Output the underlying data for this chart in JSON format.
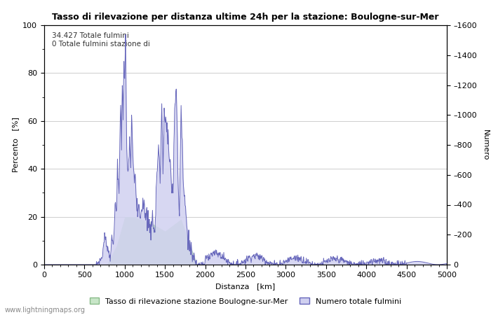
{
  "title": "Tasso di rilevazione per distanza ultime 24h per la stazione: Boulogne-sur-Mer",
  "xlabel": "Distanza   [km]",
  "ylabel_left": "Percento   [%]",
  "ylabel_right": "Numero",
  "annotation": "34.427 Totale fulmini\n0 Totale fulmini stazione di",
  "xlim": [
    0,
    5000
  ],
  "ylim_left": [
    0,
    100
  ],
  "ylim_right": [
    0,
    1600
  ],
  "x_ticks": [
    0,
    500,
    1000,
    1500,
    2000,
    2500,
    3000,
    3500,
    4000,
    4500,
    5000
  ],
  "y_ticks_left": [
    0,
    20,
    40,
    60,
    80,
    100
  ],
  "y_ticks_right": [
    0,
    200,
    400,
    600,
    800,
    1000,
    1200,
    1400,
    1600
  ],
  "watermark": "www.lightningmaps.org",
  "legend_green_label": "Tasso di rilevazione stazione Boulogne-sur-Mer",
  "legend_blue_label": "Numero totale fulmini",
  "green_fill_color": "#c8e6c8",
  "blue_fill_color": "#d0d0f0",
  "blue_line_color": "#6666bb",
  "green_line_color": "#88bb88",
  "background_color": "#ffffff",
  "grid_color": "#bbbbbb"
}
